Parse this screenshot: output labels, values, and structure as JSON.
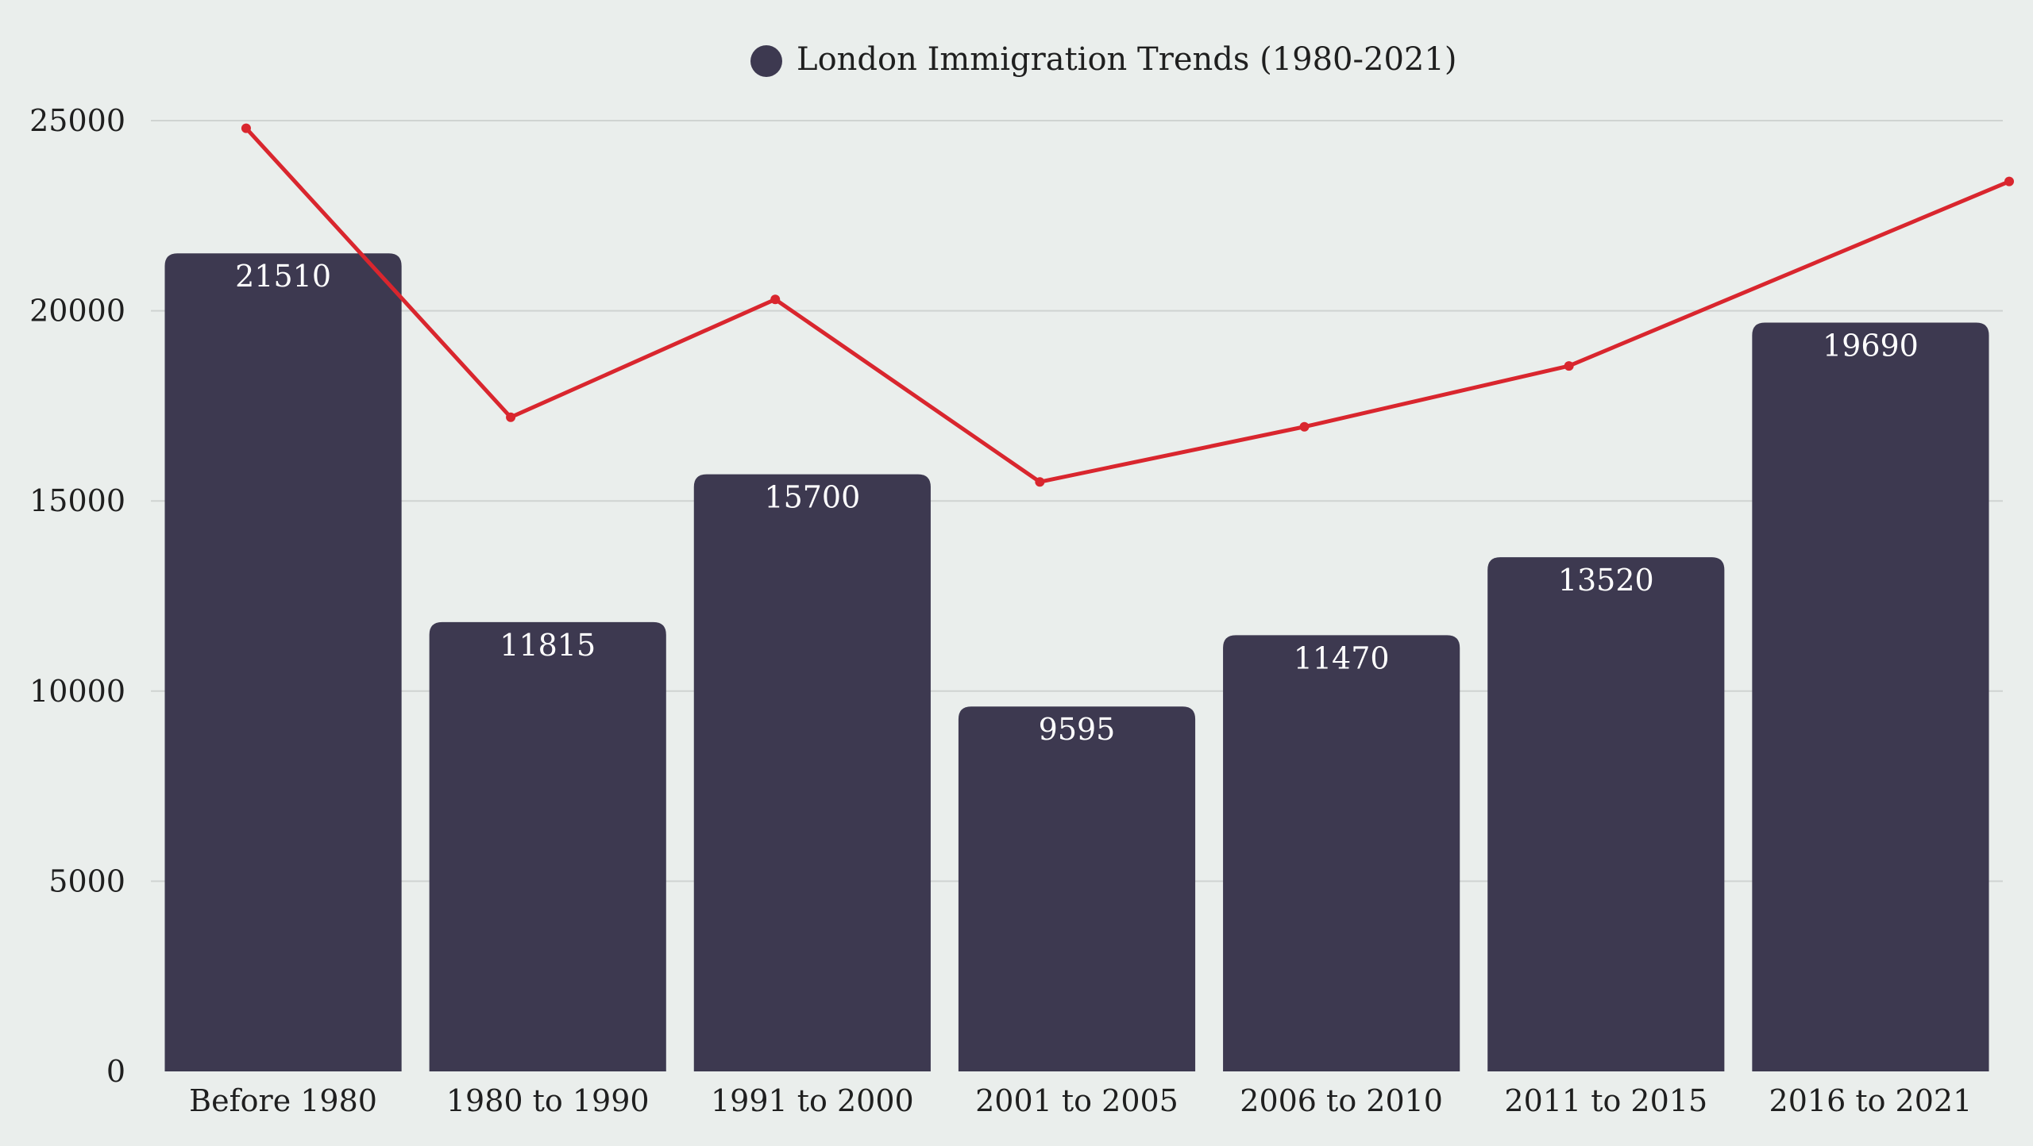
{
  "chart_data": {
    "type": "bar",
    "categories": [
      "Before 1980",
      "1980 to 1990",
      "1991 to 2000",
      "2001 to 2005",
      "2006 to 2010",
      "2011 to 2015",
      "2016 to 2021"
    ],
    "series": [
      {
        "name": "London Immigration Trends (1980-2021)",
        "type": "bar",
        "color": "#3d3950",
        "values": [
          21510,
          11815,
          15700,
          9595,
          11470,
          13520,
          19690
        ]
      },
      {
        "type": "line",
        "color": "#d9262e",
        "values": [
          24800,
          17200,
          20300,
          15500,
          16950,
          18550,
          23400
        ]
      }
    ],
    "legend": {
      "position": "top-center",
      "label": "London Immigration Trends (1980-2021)",
      "marker_color": "#3d3950"
    },
    "yticks": [
      "0",
      "5000",
      "10000",
      "15000",
      "20000",
      "25000"
    ],
    "ylim": [
      0,
      25000
    ],
    "grid": true,
    "title": "",
    "xlabel": "",
    "ylabel": ""
  }
}
